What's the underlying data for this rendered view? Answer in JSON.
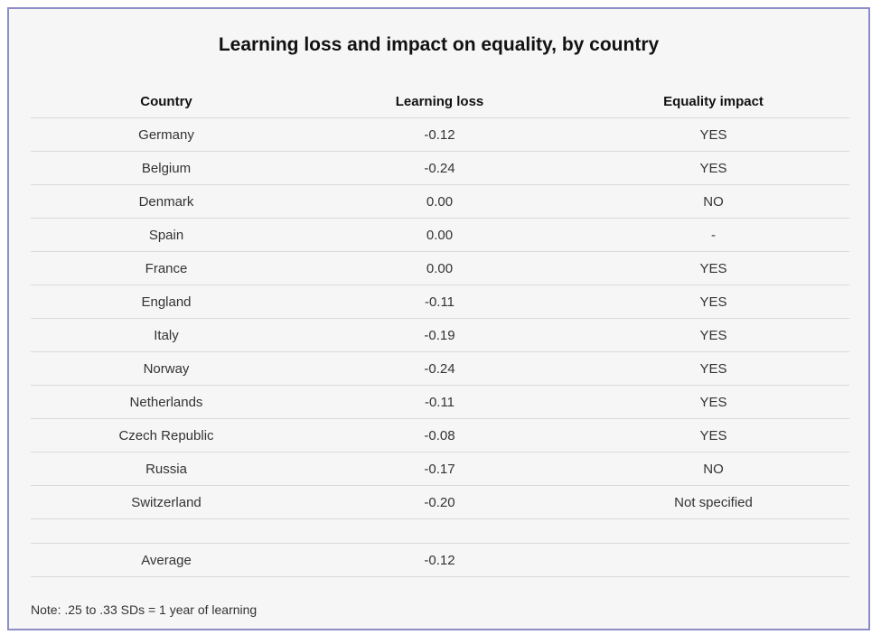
{
  "title": "Learning loss and impact on equality, by country",
  "headers": [
    "Country",
    "Learning loss",
    "Equality impact"
  ],
  "rows": [
    [
      "Germany",
      "-0.12",
      "YES"
    ],
    [
      "Belgium",
      "-0.24",
      "YES"
    ],
    [
      "Denmark",
      "0.00",
      "NO"
    ],
    [
      "Spain",
      "0.00",
      "-"
    ],
    [
      "France",
      "0.00",
      "YES"
    ],
    [
      "England",
      "-0.11",
      "YES"
    ],
    [
      "Italy",
      "-0.19",
      "YES"
    ],
    [
      "Norway",
      "-0.24",
      "YES"
    ],
    [
      "Netherlands",
      "-0.11",
      "YES"
    ],
    [
      "Czech Republic",
      "-0.08",
      "YES"
    ],
    [
      "Russia",
      "-0.17",
      "NO"
    ],
    [
      "Switzerland",
      "-0.20",
      "Not specified"
    ]
  ],
  "average": [
    "Average",
    "-0.12",
    ""
  ],
  "note": "Note: .25 to .33 SDs = 1 year of learning",
  "chart_data": {
    "type": "table",
    "title": "Learning loss and impact on equality, by country",
    "columns": [
      "Country",
      "Learning loss",
      "Equality impact"
    ],
    "rows": [
      [
        "Germany",
        -0.12,
        "YES"
      ],
      [
        "Belgium",
        -0.24,
        "YES"
      ],
      [
        "Denmark",
        0.0,
        "NO"
      ],
      [
        "Spain",
        0.0,
        "-"
      ],
      [
        "France",
        0.0,
        "YES"
      ],
      [
        "England",
        -0.11,
        "YES"
      ],
      [
        "Italy",
        -0.19,
        "YES"
      ],
      [
        "Norway",
        -0.24,
        "YES"
      ],
      [
        "Netherlands",
        -0.11,
        "YES"
      ],
      [
        "Czech Republic",
        -0.08,
        "YES"
      ],
      [
        "Russia",
        -0.17,
        "NO"
      ],
      [
        "Switzerland",
        -0.2,
        "Not specified"
      ]
    ],
    "summary_row": [
      "Average",
      -0.12,
      ""
    ]
  }
}
